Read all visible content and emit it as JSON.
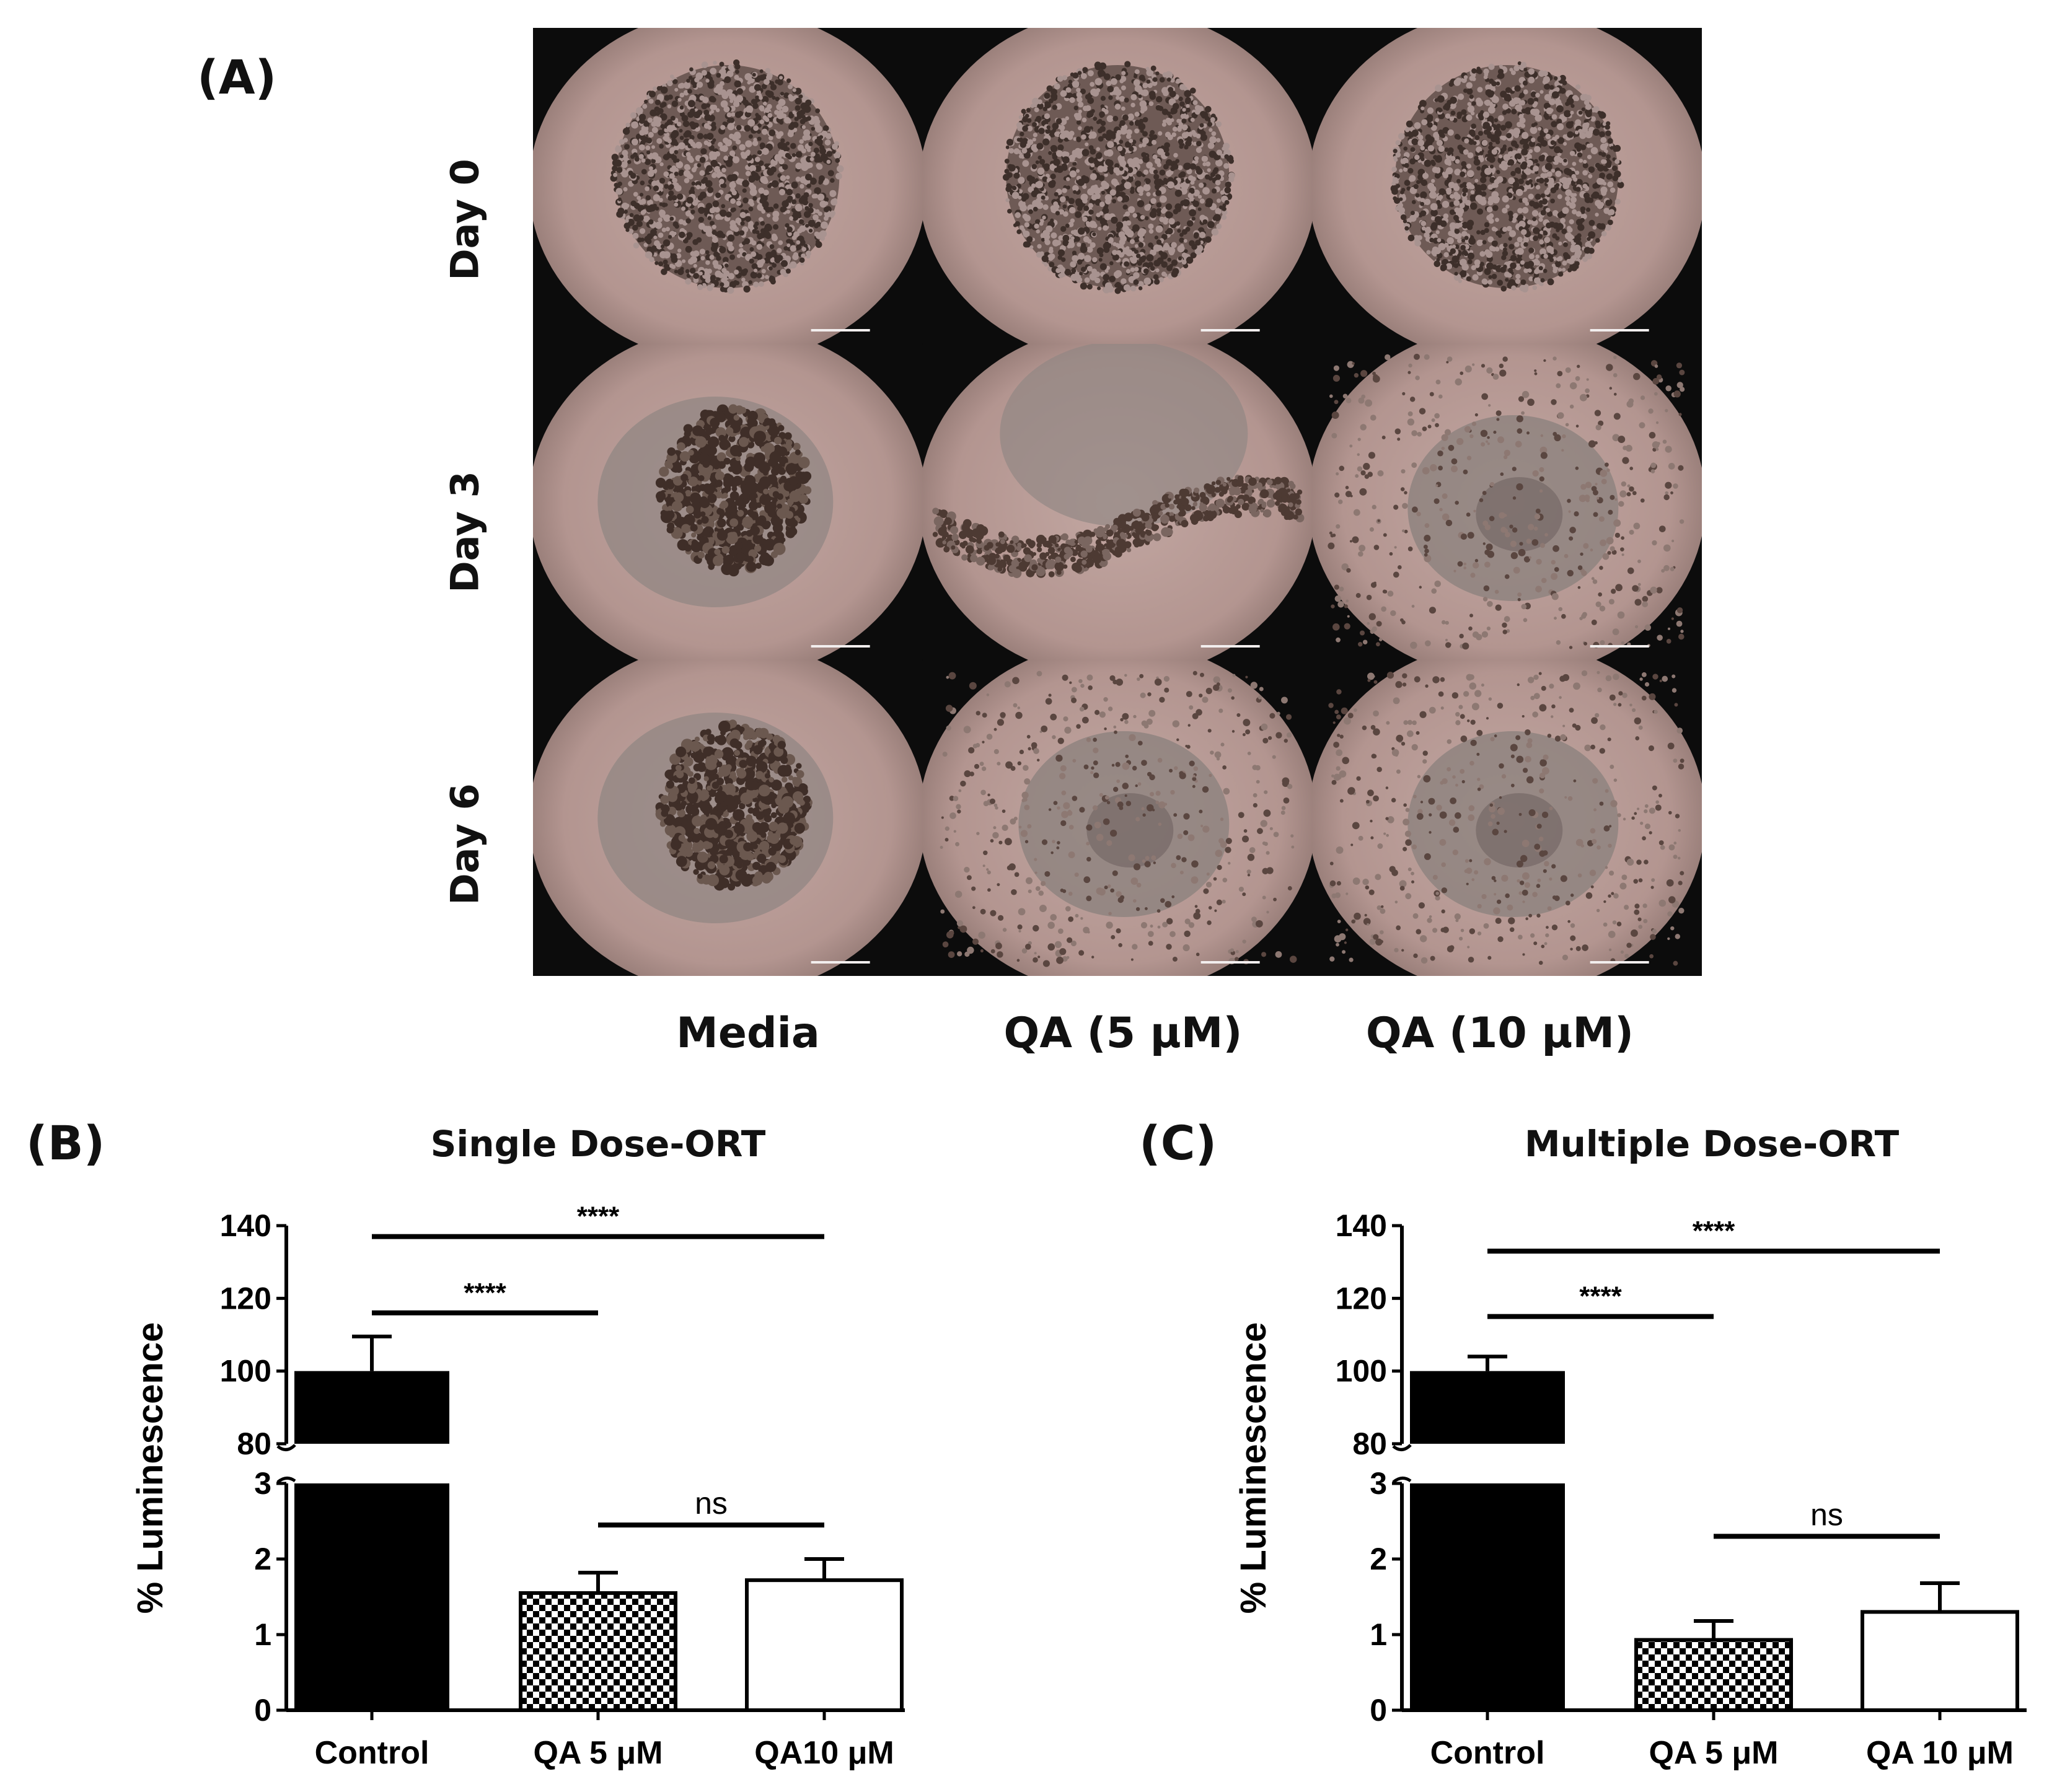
{
  "figure": {
    "panel_labels": [
      "(A)",
      "(B)",
      "(C)"
    ],
    "microscopy": {
      "row_labels": [
        "Day 0",
        "Day 3",
        "Day 6"
      ],
      "column_labels": [
        "Media",
        "QA (5 μM)",
        "QA (10 μM)"
      ],
      "cells": [
        {
          "day": "Day 0",
          "condition": "Media",
          "morphology": "compact-spheroid"
        },
        {
          "day": "Day 0",
          "condition": "QA (5 μM)",
          "morphology": "compact-spheroid"
        },
        {
          "day": "Day 0",
          "condition": "QA (10 μM)",
          "morphology": "compact-spheroid"
        },
        {
          "day": "Day 3",
          "condition": "Media",
          "morphology": "dark-cluster"
        },
        {
          "day": "Day 3",
          "condition": "QA (5 μM)",
          "morphology": "dispersed-chain"
        },
        {
          "day": "Day 3",
          "condition": "QA (10 μM)",
          "morphology": "faint-dispersed"
        },
        {
          "day": "Day 6",
          "condition": "Media",
          "morphology": "dark-cluster"
        },
        {
          "day": "Day 6",
          "condition": "QA (5 μM)",
          "morphology": "faint-dispersed"
        },
        {
          "day": "Day 6",
          "condition": "QA (10 μM)",
          "morphology": "faint-dispersed"
        }
      ],
      "colors": {
        "background": "#b39590",
        "vignette": "#0c0c0c",
        "cells": "#3f2e28"
      }
    }
  },
  "chart_data": [
    {
      "panel": "(B)",
      "type": "bar",
      "title": "Single Dose-ORT",
      "ylabel": "% Luminescence",
      "xlabel": "",
      "categories": [
        "Control",
        "QA 5 μM",
        "QA10 μM"
      ],
      "values": [
        100,
        1.55,
        1.72
      ],
      "errors": [
        9.5,
        0.27,
        0.28
      ],
      "fills": [
        "black",
        "checker",
        "white"
      ],
      "y_axis_broken": true,
      "ylim_lower": [
        0,
        3
      ],
      "ylim_upper": [
        80,
        140
      ],
      "yticks_lower": [
        "0",
        "1",
        "2",
        "3"
      ],
      "yticks_upper": [
        "80",
        "100",
        "120",
        "140"
      ],
      "significance": [
        {
          "from": "Control",
          "to": "QA 5 μM",
          "label": "****",
          "level": 116
        },
        {
          "from": "Control",
          "to": "QA10 μM",
          "label": "****",
          "level": 137
        },
        {
          "from": "QA 5 μM",
          "to": "QA10 μM",
          "label": "ns",
          "level": 2.45
        }
      ]
    },
    {
      "panel": "(C)",
      "type": "bar",
      "title": "Multiple Dose-ORT",
      "ylabel": "% Luminescence",
      "xlabel": "",
      "categories": [
        "Control",
        "QA 5 μM",
        "QA 10 μM"
      ],
      "values": [
        100,
        0.93,
        1.3
      ],
      "errors": [
        4,
        0.25,
        0.38
      ],
      "fills": [
        "black",
        "checker",
        "white"
      ],
      "y_axis_broken": true,
      "ylim_lower": [
        0,
        3
      ],
      "ylim_upper": [
        80,
        140
      ],
      "yticks_lower": [
        "0",
        "1",
        "2",
        "3"
      ],
      "yticks_upper": [
        "80",
        "100",
        "120",
        "140"
      ],
      "significance": [
        {
          "from": "Control",
          "to": "QA 5 μM",
          "label": "****",
          "level": 115
        },
        {
          "from": "Control",
          "to": "QA 10 μM",
          "label": "****",
          "level": 133
        },
        {
          "from": "QA 5 μM",
          "to": "QA 10 μM",
          "label": "ns",
          "level": 2.3
        }
      ]
    }
  ]
}
